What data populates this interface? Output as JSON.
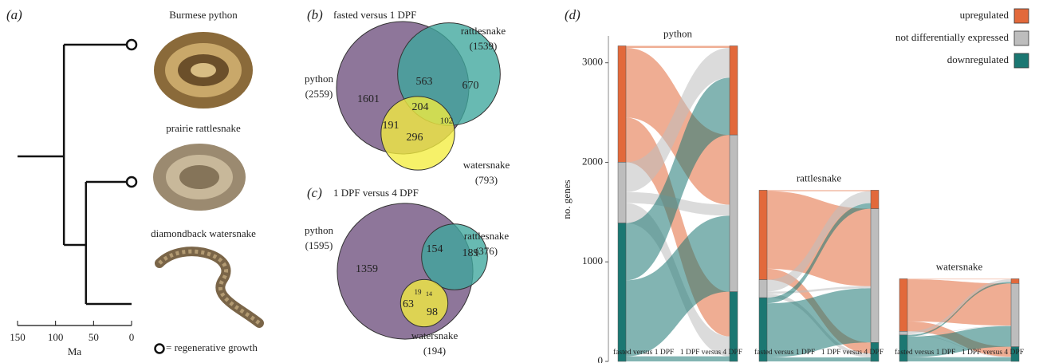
{
  "panel_a": {
    "label": "(a)",
    "species": [
      {
        "name": "Burmese python",
        "regenerative": true
      },
      {
        "name": "prairie rattlesnake",
        "regenerative": true
      },
      {
        "name": "diamondback watersnake",
        "regenerative": false
      }
    ],
    "node_ages": [
      89,
      60
    ],
    "xlim": [
      150,
      0
    ],
    "xticks": [
      150,
      100,
      50,
      0
    ],
    "xlabel": "Ma",
    "legend": "= regenerative growth"
  },
  "panel_b": {
    "label": "(b)",
    "title": "fasted versus 1 DPF",
    "sets": [
      {
        "name": "python",
        "total": 2559,
        "total_label": "(2559)",
        "color": "#6e4f7e"
      },
      {
        "name": "rattlesnake",
        "total": 1539,
        "total_label": "(1539)",
        "color": "#3ea79c"
      },
      {
        "name": "watersnake",
        "total": 793,
        "total_label": "(793)",
        "color": "#f3ed3f"
      }
    ],
    "regions": [
      1601,
      563,
      670,
      204,
      191,
      102,
      296
    ]
  },
  "panel_c": {
    "label": "(c)",
    "title": "1 DPF versus 4 DPF",
    "sets": [
      {
        "name": "python",
        "total": 1595,
        "total_label": "(1595)",
        "color": "#6e4f7e"
      },
      {
        "name": "rattlesnake",
        "total": 376,
        "total_label": "(376)",
        "color": "#3ea79c"
      },
      {
        "name": "watersnake",
        "total": 194,
        "total_label": "(194)",
        "color": "#f3ed3f"
      }
    ],
    "regions": [
      1359,
      154,
      189,
      19,
      14,
      63,
      98
    ]
  },
  "panel_d": {
    "label": "(d)",
    "type": "sankey",
    "ylabel": "no. genes",
    "ylim": [
      0,
      3270
    ],
    "yticks": [
      0,
      1000,
      2000,
      3000
    ],
    "columns": [
      "fasted versus 1 DPF",
      "1 DPF versus 4 DPF"
    ],
    "states": [
      {
        "name": "upregulated",
        "color": "#e2693b"
      },
      {
        "name": "not differentially expressed",
        "color": "#bdbdbd"
      },
      {
        "name": "downregulated",
        "color": "#1b7772"
      }
    ],
    "groups": [
      {
        "name": "python",
        "first": [
          1169,
          611,
          1390
        ],
        "second": [
          895,
          1575,
          700
        ],
        "flows": [
          [
            20,
            700,
            449
          ],
          [
            300,
            111,
            200
          ],
          [
            575,
            764,
            51
          ]
        ]
      },
      {
        "name": "rattlesnake",
        "first": [
          899,
          181,
          640
        ],
        "second": [
          186,
          1344,
          190
        ],
        "flows": [
          [
            10,
            779,
            110
          ],
          [
            120,
            21,
            40
          ],
          [
            56,
            544,
            40
          ]
        ]
      },
      {
        "name": "watersnake",
        "first": [
          528,
          37,
          265
        ],
        "second": [
          47,
          636,
          147
        ],
        "flows": [
          [
            5,
            423,
            100
          ],
          [
            27,
            5,
            5
          ],
          [
            15,
            208,
            42
          ]
        ]
      }
    ]
  }
}
